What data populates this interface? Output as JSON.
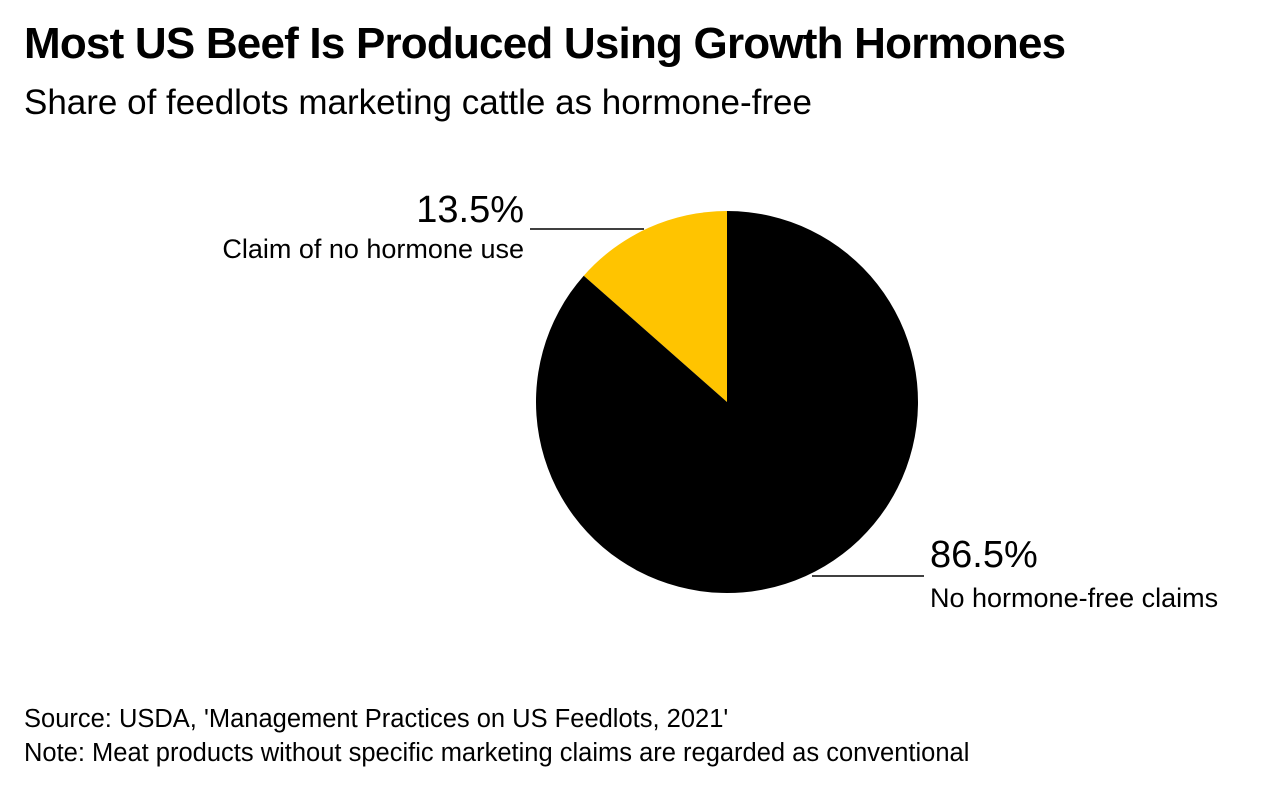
{
  "title": "Most US Beef Is Produced Using Growth Hormones",
  "subtitle": "Share of feedlots marketing cattle as hormone-free",
  "chart_data": {
    "type": "pie",
    "slices": [
      {
        "label": "Claim of no hormone use",
        "value": 13.5,
        "value_label": "13.5%",
        "color": "#FFC400"
      },
      {
        "label": "No hormone-free claims",
        "value": 86.5,
        "value_label": "86.5%",
        "color": "#000000"
      }
    ]
  },
  "footer": {
    "source": "Source: USDA, 'Management Practices on US Feedlots, 2021'",
    "note": "Note: Meat products without specific marketing claims are regarded as conventional"
  }
}
